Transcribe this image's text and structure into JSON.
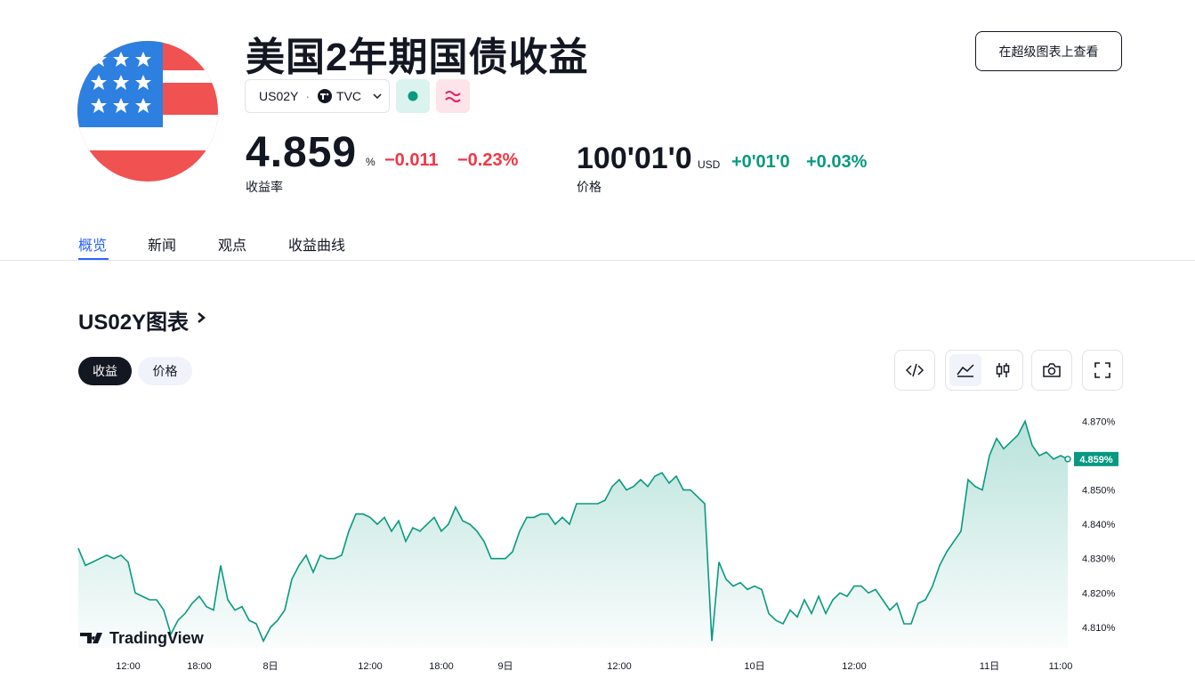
{
  "header": {
    "title": "美国2年期国债收益",
    "symbol": "US02Y",
    "exchange": "TVC",
    "supercharts_button": "在超级图表上查看"
  },
  "yield_quote": {
    "value": "4.859",
    "unit": "%",
    "change": "−0.011",
    "change_percent": "−0.23%",
    "label": "收益率"
  },
  "price_quote": {
    "value": "100'01'0",
    "currency": "USD",
    "change": "+0'01'0",
    "change_percent": "+0.03%",
    "label": "价格"
  },
  "tabs": [
    "概览",
    "新闻",
    "观点",
    "收益曲线"
  ],
  "chart_section": {
    "title": "US02Y图表",
    "toggles": [
      "收益",
      "价格"
    ]
  },
  "chart_data": {
    "type": "area",
    "color": "#089981",
    "watermark": "TradingView",
    "values": [
      4.833,
      4.828,
      4.829,
      4.83,
      4.831,
      4.83,
      4.831,
      4.829,
      4.82,
      4.819,
      4.818,
      4.818,
      4.815,
      4.808,
      4.812,
      4.814,
      4.817,
      4.819,
      4.816,
      4.815,
      4.828,
      4.818,
      4.815,
      4.816,
      4.812,
      4.811,
      4.806,
      4.81,
      4.812,
      4.815,
      4.824,
      4.828,
      4.831,
      4.826,
      4.831,
      4.83,
      4.83,
      4.831,
      4.838,
      4.843,
      4.843,
      4.842,
      4.84,
      4.842,
      4.838,
      4.841,
      4.835,
      4.839,
      4.838,
      4.84,
      4.842,
      4.838,
      4.84,
      4.845,
      4.841,
      4.84,
      4.838,
      4.835,
      4.83,
      4.83,
      4.83,
      4.832,
      4.838,
      4.842,
      4.842,
      4.843,
      4.843,
      4.84,
      4.842,
      4.84,
      4.846,
      4.846,
      4.846,
      4.846,
      4.847,
      4.851,
      4.853,
      4.85,
      4.851,
      4.853,
      4.851,
      4.854,
      4.855,
      4.852,
      4.854,
      4.85,
      4.85,
      4.848,
      4.846,
      4.806,
      4.829,
      4.824,
      4.822,
      4.823,
      4.821,
      4.822,
      4.821,
      4.814,
      4.812,
      4.811,
      4.815,
      4.813,
      4.818,
      4.814,
      4.819,
      4.814,
      4.818,
      4.82,
      4.819,
      4.822,
      4.822,
      4.82,
      4.821,
      4.818,
      4.815,
      4.817,
      4.811,
      4.811,
      4.817,
      4.818,
      4.822,
      4.828,
      4.832,
      4.835,
      4.838,
      4.853,
      4.851,
      4.85,
      4.86,
      4.865,
      4.862,
      4.864,
      4.866,
      4.87,
      4.863,
      4.86,
      4.861,
      4.859,
      4.86,
      4.859
    ],
    "last_value_label": "4.859%",
    "xlim": [
      0,
      139
    ],
    "xticks": [
      {
        "value": 7,
        "label": "12:00"
      },
      {
        "value": 17,
        "label": "18:00"
      },
      {
        "value": 27,
        "label": "8日"
      },
      {
        "value": 41,
        "label": "12:00"
      },
      {
        "value": 51,
        "label": "18:00"
      },
      {
        "value": 60,
        "label": "9日"
      },
      {
        "value": 76,
        "label": "12:00"
      },
      {
        "value": 95,
        "label": "10日"
      },
      {
        "value": 109,
        "label": "12:00"
      },
      {
        "value": 128,
        "label": "11日"
      },
      {
        "value": 138,
        "label": "11:00"
      }
    ],
    "ylim": [
      4.804,
      4.874
    ],
    "yticks": [
      {
        "value": 4.81,
        "label": "4.810%"
      },
      {
        "value": 4.82,
        "label": "4.820%"
      },
      {
        "value": 4.83,
        "label": "4.830%"
      },
      {
        "value": 4.84,
        "label": "4.840%"
      },
      {
        "value": 4.85,
        "label": "4.850%"
      },
      {
        "value": 4.87,
        "label": "4.870%"
      }
    ],
    "grid": false
  }
}
